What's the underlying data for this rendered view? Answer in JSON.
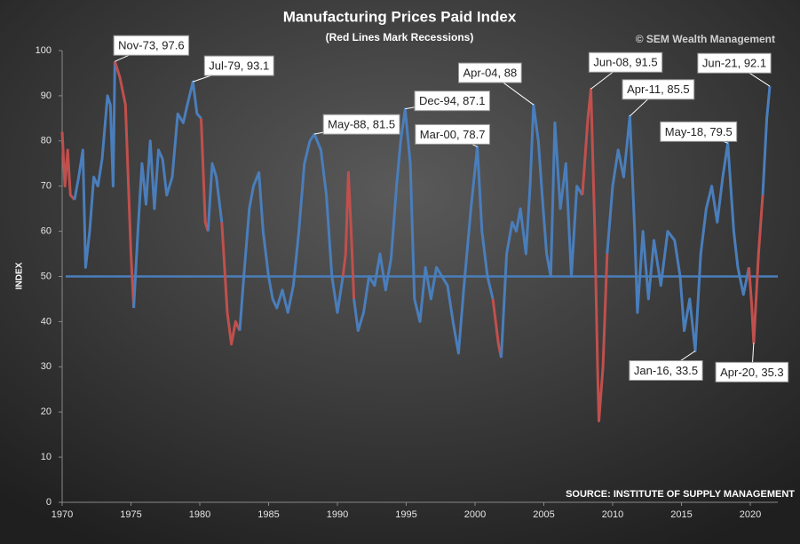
{
  "chart_data": {
    "type": "line",
    "title": "Manufacturing  Prices  Paid  Index",
    "subtitle": "(Red Lines Mark Recessions)",
    "watermark": "© SEM Wealth Management",
    "source": "SOURCE:  INSTITUTE OF SUPPLY MANAGEMENT",
    "y_label": "INDEX",
    "xlim": [
      1970,
      2022
    ],
    "xticks": [
      1970,
      1975,
      1980,
      1985,
      1990,
      1995,
      2000,
      2005,
      2010,
      2015,
      2020
    ],
    "ylim": [
      0,
      100
    ],
    "yticks": [
      0,
      10,
      20,
      30,
      40,
      50,
      60,
      70,
      80,
      90,
      100
    ],
    "reference_line": 50,
    "reference_color": "#4a7ebb",
    "color": "#4a7ebb",
    "recession_color": "#c0504d",
    "recessions": [
      [
        1970.0,
        1970.9
      ],
      [
        1973.83,
        1975.2
      ],
      [
        1980.0,
        1980.6
      ],
      [
        1981.5,
        1982.9
      ],
      [
        1990.5,
        1991.2
      ],
      [
        2001.2,
        2001.9
      ],
      [
        2007.9,
        2009.5
      ],
      [
        2020.0,
        2021.0
      ]
    ],
    "x": [
      1970.0,
      1970.2,
      1970.4,
      1970.6,
      1970.9,
      1971.2,
      1971.5,
      1971.7,
      1972.0,
      1972.3,
      1972.6,
      1972.9,
      1973.3,
      1973.5,
      1973.7,
      1973.83,
      1974.2,
      1974.6,
      1975.0,
      1975.2,
      1975.5,
      1975.8,
      1976.1,
      1976.4,
      1976.7,
      1977.0,
      1977.3,
      1977.6,
      1978.0,
      1978.4,
      1978.8,
      1979.1,
      1979.5,
      1979.8,
      1980.1,
      1980.4,
      1980.6,
      1980.9,
      1981.2,
      1981.6,
      1982.0,
      1982.3,
      1982.6,
      1982.9,
      1983.2,
      1983.6,
      1983.9,
      1984.3,
      1984.6,
      1985.0,
      1985.3,
      1985.6,
      1986.0,
      1986.4,
      1986.8,
      1987.2,
      1987.6,
      1988.0,
      1988.33,
      1988.8,
      1989.2,
      1989.6,
      1990.0,
      1990.4,
      1990.6,
      1990.8,
      1991.0,
      1991.2,
      1991.5,
      1991.9,
      1992.3,
      1992.7,
      1993.1,
      1993.5,
      1993.9,
      1994.3,
      1994.6,
      1994.92,
      1995.3,
      1995.6,
      1996.0,
      1996.4,
      1996.8,
      1997.2,
      1997.6,
      1998.0,
      1998.4,
      1998.8,
      1999.2,
      1999.7,
      2000.17,
      2000.5,
      2000.9,
      2001.3,
      2001.7,
      2001.9,
      2002.3,
      2002.7,
      2003.0,
      2003.3,
      2003.7,
      2004.0,
      2004.25,
      2004.6,
      2004.9,
      2005.2,
      2005.5,
      2005.8,
      2006.2,
      2006.6,
      2007.0,
      2007.4,
      2007.8,
      2008.2,
      2008.42,
      2008.7,
      2008.9,
      2009.0,
      2009.3,
      2009.6,
      2010.0,
      2010.4,
      2010.8,
      2011.25,
      2011.6,
      2011.8,
      2012.2,
      2012.6,
      2013.0,
      2013.5,
      2014.0,
      2014.5,
      2014.9,
      2015.2,
      2015.6,
      2016.0,
      2016.4,
      2016.8,
      2017.2,
      2017.6,
      2018.0,
      2018.37,
      2018.8,
      2019.1,
      2019.5,
      2019.9,
      2020.1,
      2020.25,
      2020.6,
      2020.9,
      2021.2,
      2021.42
    ],
    "values": [
      82,
      70,
      78,
      68,
      67,
      72,
      78,
      52,
      60,
      72,
      70,
      76,
      90,
      88,
      70,
      97.6,
      94,
      88,
      55,
      43,
      60,
      75,
      66,
      80,
      65,
      78,
      76,
      68,
      72,
      86,
      84,
      88,
      93.1,
      86,
      85,
      62,
      60,
      75,
      72,
      62,
      42,
      35,
      40,
      38,
      50,
      65,
      70,
      73,
      60,
      50,
      45,
      43,
      47,
      42,
      48,
      60,
      75,
      80,
      81.5,
      78,
      68,
      50,
      42,
      50,
      55,
      73,
      60,
      45,
      38,
      42,
      50,
      48,
      55,
      47,
      54,
      70,
      80,
      87.1,
      75,
      45,
      40,
      52,
      45,
      52,
      50,
      48,
      40,
      33,
      48,
      65,
      78.7,
      60,
      50,
      45,
      35,
      32,
      55,
      62,
      60,
      65,
      55,
      70,
      88,
      80,
      67,
      55,
      50,
      84,
      65,
      75,
      50,
      70,
      68,
      85,
      91.5,
      60,
      30,
      18,
      30,
      55,
      70,
      78,
      72,
      85.5,
      60,
      42,
      60,
      45,
      58,
      48,
      60,
      58,
      50,
      38,
      45,
      33.5,
      55,
      65,
      70,
      62,
      72,
      79.5,
      60,
      52,
      46,
      52,
      44,
      35.3,
      55,
      68,
      85,
      92.1
    ],
    "annotations": [
      {
        "text": "Nov-73, 97.6",
        "x": 1973.83,
        "y": 97.6
      },
      {
        "text": "Jul-79, 93.1",
        "x": 1979.5,
        "y": 93.1
      },
      {
        "text": "May-88, 81.5",
        "x": 1988.33,
        "y": 81.5
      },
      {
        "text": "Dec-94, 87.1",
        "x": 1994.92,
        "y": 87.1
      },
      {
        "text": "Mar-00, 78.7",
        "x": 2000.17,
        "y": 78.7
      },
      {
        "text": "Apr-04, 88",
        "x": 2004.25,
        "y": 88
      },
      {
        "text": "Jun-08, 91.5",
        "x": 2008.42,
        "y": 91.5
      },
      {
        "text": "Apr-11, 85.5",
        "x": 2011.25,
        "y": 85.5
      },
      {
        "text": "Jan-16, 33.5",
        "x": 2016.0,
        "y": 33.5
      },
      {
        "text": "May-18, 79.5",
        "x": 2018.37,
        "y": 79.5
      },
      {
        "text": "Apr-20, 35.3",
        "x": 2020.25,
        "y": 35.3
      },
      {
        "text": "Jun-21, 92.1",
        "x": 2021.42,
        "y": 92.1
      }
    ]
  }
}
